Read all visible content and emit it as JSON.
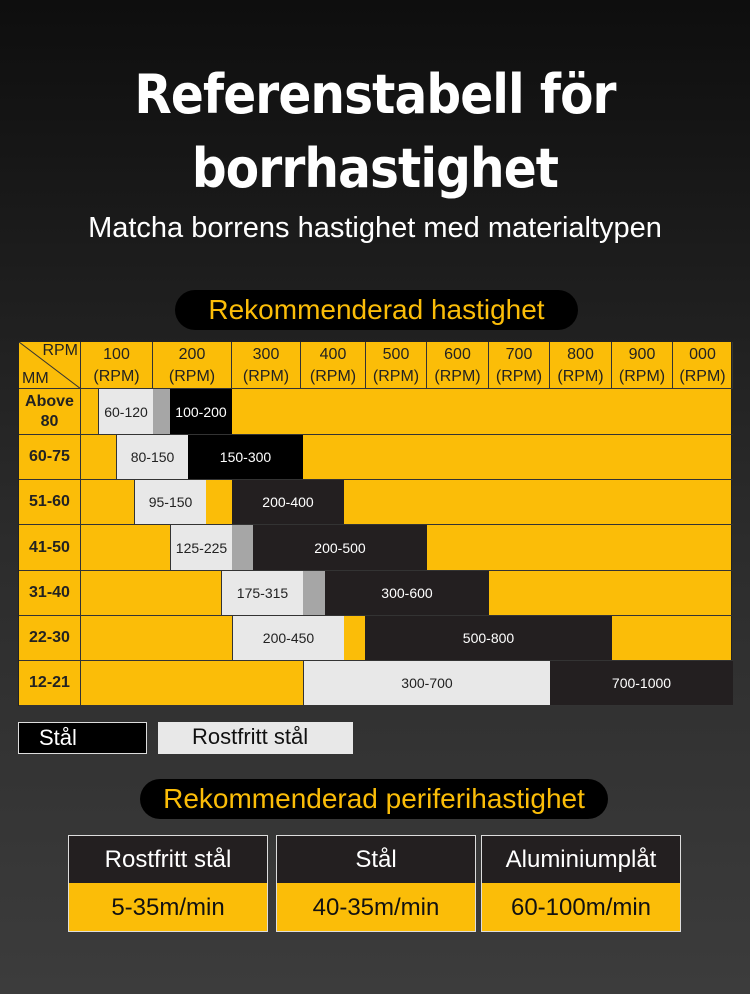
{
  "title": "Referenstabell för borrhastighet",
  "subtitle": "Matcha borrens hastighet med materialtypen",
  "section1": "Rekommenderad hastighet",
  "table": {
    "corner_top": "RPM",
    "corner_bottom": "MM",
    "columns": [
      "100",
      "200",
      "300",
      "400",
      "500",
      "600",
      "700",
      "800",
      "900",
      "000"
    ],
    "unit": "(RPM)",
    "rows": [
      {
        "label": "Above 80",
        "bars": [
          "60-120",
          "",
          "100-200"
        ]
      },
      {
        "label": "60-75",
        "bars": [
          "80-150",
          "150-300"
        ]
      },
      {
        "label": "51-60",
        "bars": [
          "95-150",
          "200-400"
        ]
      },
      {
        "label": "41-50",
        "bars": [
          "125-225",
          "",
          "200-500"
        ]
      },
      {
        "label": "31-40",
        "bars": [
          "175-315",
          "",
          "300-600"
        ]
      },
      {
        "label": "22-30",
        "bars": [
          "200-450",
          "500-800"
        ]
      },
      {
        "label": "12-21",
        "bars": [
          "300-700",
          "700-1000"
        ]
      }
    ]
  },
  "legend": {
    "steel": "Stål",
    "stainless": "Rostfritt stål"
  },
  "section2": "Rekommenderad periferihastighet",
  "peripheral": [
    {
      "material": "Rostfritt stål",
      "speed": "5-35m/min"
    },
    {
      "material": "Stål",
      "speed": "40-35m/min"
    },
    {
      "material": "Aluminiumplåt",
      "speed": "60-100m/min"
    }
  ],
  "colors": {
    "accent": "#fbbd08",
    "steel": "#000000",
    "stainless": "#e8e8e8"
  }
}
